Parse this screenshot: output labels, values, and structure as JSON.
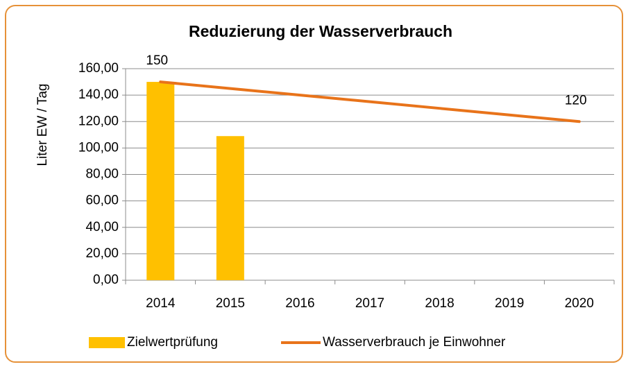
{
  "chart_data": {
    "type": "bar-line",
    "title": "Reduzierung der Wasserverbrauch",
    "y_label": "Liter EW / Tag",
    "categories": [
      "2014",
      "2015",
      "2016",
      "2017",
      "2018",
      "2019",
      "2020"
    ],
    "series": [
      {
        "name": "Zielwertprüfung",
        "type": "bar",
        "color": "#ffc000",
        "values": [
          150,
          109,
          null,
          null,
          null,
          null,
          null
        ]
      },
      {
        "name": "Wasserverbrauch je Einwohner",
        "type": "line",
        "color": "#e8731a",
        "values": [
          150,
          145,
          140,
          135,
          130,
          125,
          120
        ],
        "value_labels": [
          "150",
          null,
          null,
          null,
          null,
          null,
          "120"
        ]
      }
    ],
    "ylim": [
      0,
      160
    ],
    "yticks": [
      {
        "value": 0,
        "label": "0,00"
      },
      {
        "value": 20,
        "label": "20,00"
      },
      {
        "value": 40,
        "label": "40,00"
      },
      {
        "value": 60,
        "label": "60,00"
      },
      {
        "value": 80,
        "label": "80,00"
      },
      {
        "value": 100,
        "label": "100,00"
      },
      {
        "value": 120,
        "label": "120,00"
      },
      {
        "value": 140,
        "label": "140,00"
      },
      {
        "value": 160,
        "label": "160,00"
      }
    ],
    "grid": true,
    "legend": "bottom"
  }
}
